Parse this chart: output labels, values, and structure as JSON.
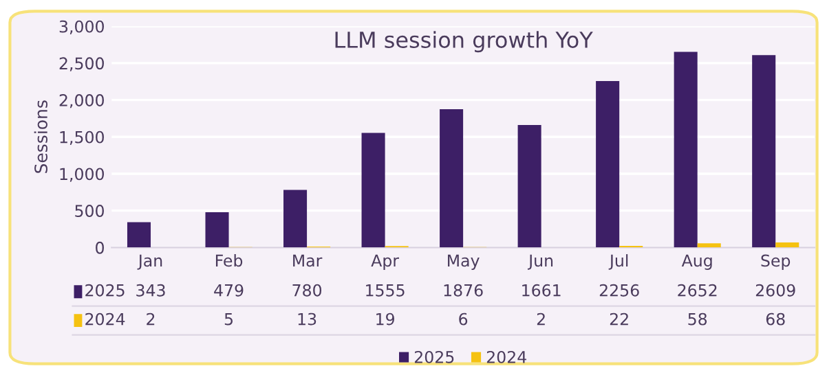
{
  "chart_data": {
    "type": "bar",
    "title": "LLM session growth YoY",
    "ylabel": "Sessions",
    "categories": [
      "Jan",
      "Feb",
      "Mar",
      "Apr",
      "May",
      "Jun",
      "Jul",
      "Aug",
      "Sep"
    ],
    "series": [
      {
        "name": "2025",
        "color": "#3d1f66",
        "values": [
          343,
          479,
          780,
          1555,
          1876,
          1661,
          2256,
          2652,
          2609
        ]
      },
      {
        "name": "2024",
        "color": "#f5c211",
        "values": [
          2,
          5,
          13,
          19,
          6,
          2,
          22,
          58,
          68
        ]
      }
    ],
    "ylim": [
      0,
      3000
    ],
    "yticks": [
      0,
      {
        "value": 500,
        "label": "500"
      },
      {
        "value": 1000,
        "label": "1,000"
      },
      {
        "value": 1500,
        "label": "1,500"
      },
      {
        "value": 2000,
        "label": "2,000"
      },
      {
        "value": 2500,
        "label": "2,500"
      },
      {
        "value": 3000,
        "label": "3,000"
      }
    ],
    "grid": "y",
    "legend": "bottom",
    "data_labels": true
  }
}
